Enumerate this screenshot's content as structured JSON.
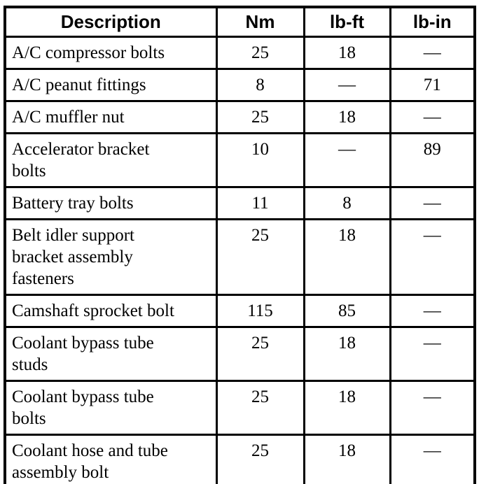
{
  "table": {
    "headers": [
      "Description",
      "Nm",
      "lb-ft",
      "lb-in"
    ],
    "rows": [
      {
        "description": "A/C compressor bolts",
        "nm": "25",
        "lb_ft": "18",
        "lb_in": "—"
      },
      {
        "description": "A/C peanut fittings",
        "nm": "8",
        "lb_ft": "—",
        "lb_in": "71"
      },
      {
        "description": "A/C muffler nut",
        "nm": "25",
        "lb_ft": "18",
        "lb_in": "—"
      },
      {
        "description": "Accelerator bracket\nbolts",
        "nm": "10",
        "lb_ft": "—",
        "lb_in": "89"
      },
      {
        "description": "Battery tray bolts",
        "nm": "11",
        "lb_ft": "8",
        "lb_in": "—"
      },
      {
        "description": "Belt idler support\nbracket assembly\nfasteners",
        "nm": "25",
        "lb_ft": "18",
        "lb_in": "—"
      },
      {
        "description": "Camshaft sprocket bolt",
        "nm": "115",
        "lb_ft": "85",
        "lb_in": "—"
      },
      {
        "description": "Coolant bypass tube\nstuds",
        "nm": "25",
        "lb_ft": "18",
        "lb_in": "—"
      },
      {
        "description": "Coolant bypass tube\nbolts",
        "nm": "25",
        "lb_ft": "18",
        "lb_in": "—"
      },
      {
        "description": "Coolant hose and tube\nassembly bolt",
        "nm": "25",
        "lb_ft": "18",
        "lb_in": "—"
      }
    ]
  }
}
